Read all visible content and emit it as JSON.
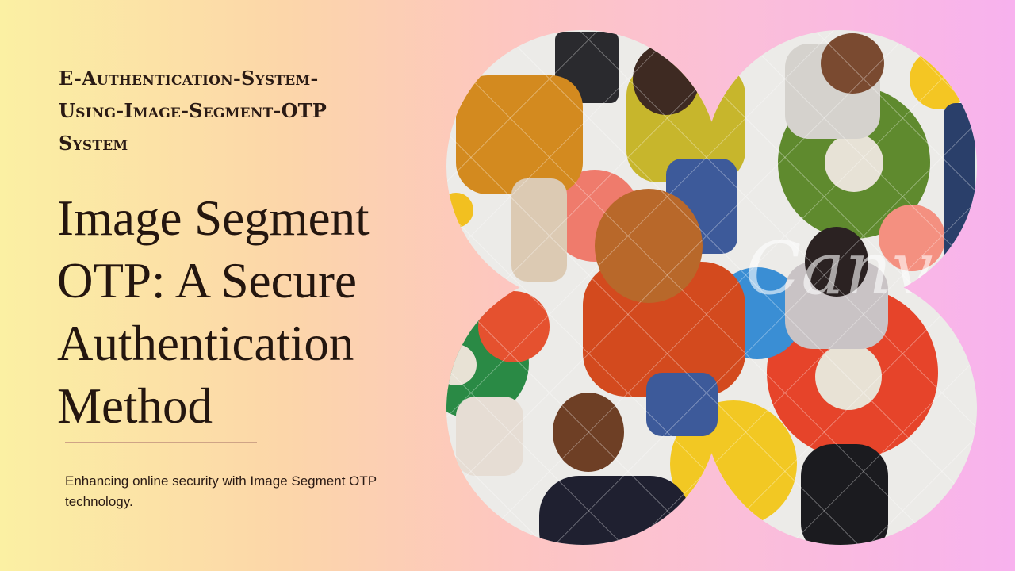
{
  "slide": {
    "kicker": "E-Authentication-System-Using-Image-Segment-OTP System",
    "title": "Image Segment OTP: A Secure Authentication Method",
    "subtitle": "Enhancing online security with Image Segment OTP technology."
  },
  "image": {
    "watermark": "Canva",
    "description_icon": "crowd-photo"
  },
  "colors": {
    "text": "#24160f",
    "divider": "#cfa486",
    "gradient_left": "#fbf0a3",
    "gradient_right": "#f8b2ee"
  }
}
